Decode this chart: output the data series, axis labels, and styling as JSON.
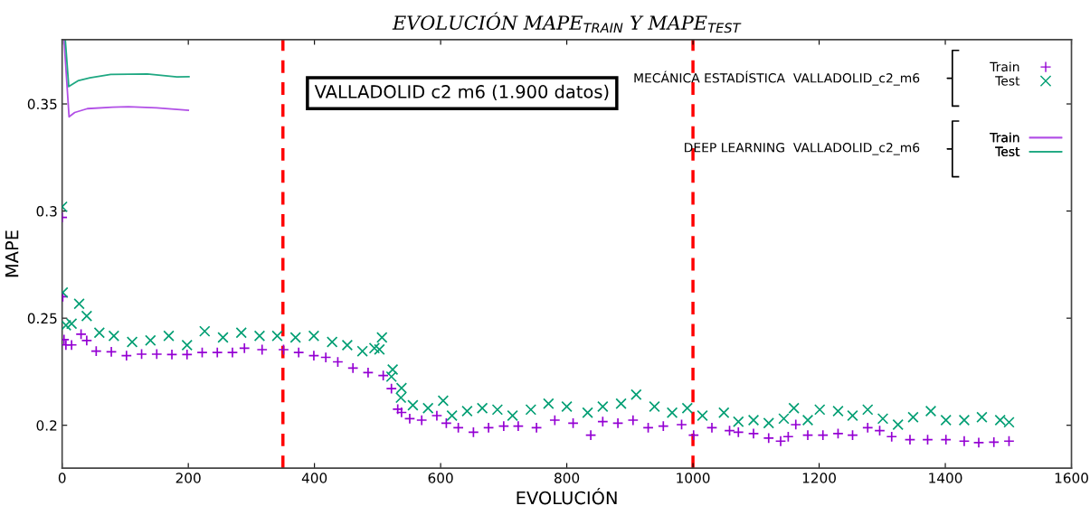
{
  "chart_data": {
    "type": "scatter",
    "title": "EVOLUCIÓN MAPE$_{TRAIN}$ Y MAPE$_{TEST}$",
    "xlabel": "EVOLUCIÓN",
    "ylabel": "MAPE",
    "xlim": [
      0,
      1600
    ],
    "xticks": [
      0,
      200,
      400,
      600,
      800,
      1000,
      1200,
      1400,
      1600
    ],
    "ylim": [
      0.18,
      0.38
    ],
    "yticks": [
      0.2,
      0.25,
      0.3,
      0.35
    ],
    "grid": false,
    "legend": "top right",
    "annotations": [
      "VALLADOLID c2 m6 (1.900 datos)",
      "MECÁNICA ESTADÍSTICA  VALLADOLID_c2_m6",
      "DEEP LEARNING  VALLADOLID_c2_m6"
    ],
    "ref_lines": [
      {
        "axis": "x",
        "value": 350,
        "color": "#ff0000",
        "line_style": "dashed"
      },
      {
        "axis": "x",
        "value": 1000,
        "color": "#ff0000",
        "line_style": "dashed"
      }
    ],
    "series": [
      {
        "name": "Train",
        "marker": "plus",
        "color": "#9400d3",
        "x": [
          0,
          1,
          3,
          6,
          15,
          30,
          39,
          54,
          78,
          102,
          126,
          150,
          174,
          198,
          222,
          246,
          270,
          289,
          317,
          351,
          375,
          399,
          418,
          437,
          461,
          485,
          509,
          522,
          532,
          538,
          551,
          570,
          594,
          609,
          628,
          652,
          676,
          700,
          723,
          752,
          781,
          810,
          838,
          857,
          881,
          905,
          929,
          953,
          982,
          1001,
          1030,
          1058,
          1072,
          1096,
          1120,
          1139,
          1151,
          1163,
          1182,
          1206,
          1230,
          1253,
          1277,
          1296,
          1315,
          1344,
          1372,
          1401,
          1430,
          1453,
          1477,
          1501
        ],
        "values": [
          0.297,
          0.26,
          0.24,
          0.2375,
          0.2375,
          0.2425,
          0.2396,
          0.2346,
          0.2343,
          0.2325,
          0.2332,
          0.2332,
          0.233,
          0.233,
          0.234,
          0.234,
          0.234,
          0.236,
          0.2353,
          0.2353,
          0.234,
          0.2325,
          0.2317,
          0.2296,
          0.2267,
          0.2246,
          0.2232,
          0.2171,
          0.2075,
          0.206,
          0.2031,
          0.2024,
          0.2045,
          0.201,
          0.1989,
          0.1968,
          0.1989,
          0.1996,
          0.1996,
          0.1989,
          0.2024,
          0.201,
          0.1954,
          0.2017,
          0.201,
          0.2024,
          0.1989,
          0.1996,
          0.2003,
          0.1954,
          0.1989,
          0.1975,
          0.1968,
          0.1961,
          0.194,
          0.1926,
          0.1947,
          0.2003,
          0.1954,
          0.1954,
          0.1961,
          0.1954,
          0.1989,
          0.1975,
          0.1947,
          0.1933,
          0.1933,
          0.1933,
          0.1926,
          0.1919,
          0.1921,
          0.1926
        ]
      },
      {
        "name": "Test",
        "marker": "cross",
        "color": "#009e73",
        "x": [
          0,
          1,
          6,
          15,
          27,
          39,
          59,
          82,
          111,
          140,
          169,
          198,
          226,
          255,
          284,
          313,
          341,
          370,
          399,
          428,
          452,
          476,
          495,
          503,
          507,
          522,
          524,
          537,
          538,
          556,
          580,
          604,
          618,
          642,
          666,
          690,
          714,
          743,
          771,
          800,
          833,
          857,
          886,
          910,
          939,
          967,
          991,
          1015,
          1049,
          1072,
          1096,
          1120,
          1144,
          1160,
          1182,
          1201,
          1230,
          1253,
          1277,
          1301,
          1325,
          1349,
          1377,
          1401,
          1430,
          1458,
          1487,
          1501
        ],
        "values": [
          0.302,
          0.262,
          0.2467,
          0.2474,
          0.2567,
          0.251,
          0.2432,
          0.2417,
          0.2389,
          0.2396,
          0.2417,
          0.2374,
          0.2439,
          0.241,
          0.2432,
          0.2417,
          0.2417,
          0.241,
          0.2417,
          0.2389,
          0.2374,
          0.2346,
          0.236,
          0.2354,
          0.241,
          0.2227,
          0.226,
          0.2129,
          0.2174,
          0.2094,
          0.208,
          0.2115,
          0.2045,
          0.2066,
          0.208,
          0.2073,
          0.2045,
          0.2073,
          0.2101,
          0.2087,
          0.2059,
          0.2087,
          0.2101,
          0.2143,
          0.2087,
          0.2059,
          0.208,
          0.2045,
          0.2059,
          0.2017,
          0.2024,
          0.201,
          0.2031,
          0.208,
          0.2024,
          0.2073,
          0.2066,
          0.2045,
          0.2073,
          0.2031,
          0.2003,
          0.2038,
          0.2066,
          0.2024,
          0.2024,
          0.2038,
          0.2024,
          0.2014
        ]
      },
      {
        "name": "Train",
        "type": "line",
        "color": "#b14fe6",
        "x": [
          3,
          11,
          20,
          40,
          80,
          105,
          150,
          200
        ],
        "values": [
          0.38,
          0.344,
          0.346,
          0.3478,
          0.3485,
          0.3487,
          0.3482,
          0.347
        ]
      },
      {
        "name": "Test",
        "type": "line",
        "color": "#1fa882",
        "x": [
          5,
          10.5,
          25,
          44,
          77,
          135,
          182,
          201
        ],
        "values": [
          0.38,
          0.3581,
          0.3608,
          0.3622,
          0.3638,
          0.364,
          0.3626,
          0.3627
        ]
      }
    ]
  }
}
